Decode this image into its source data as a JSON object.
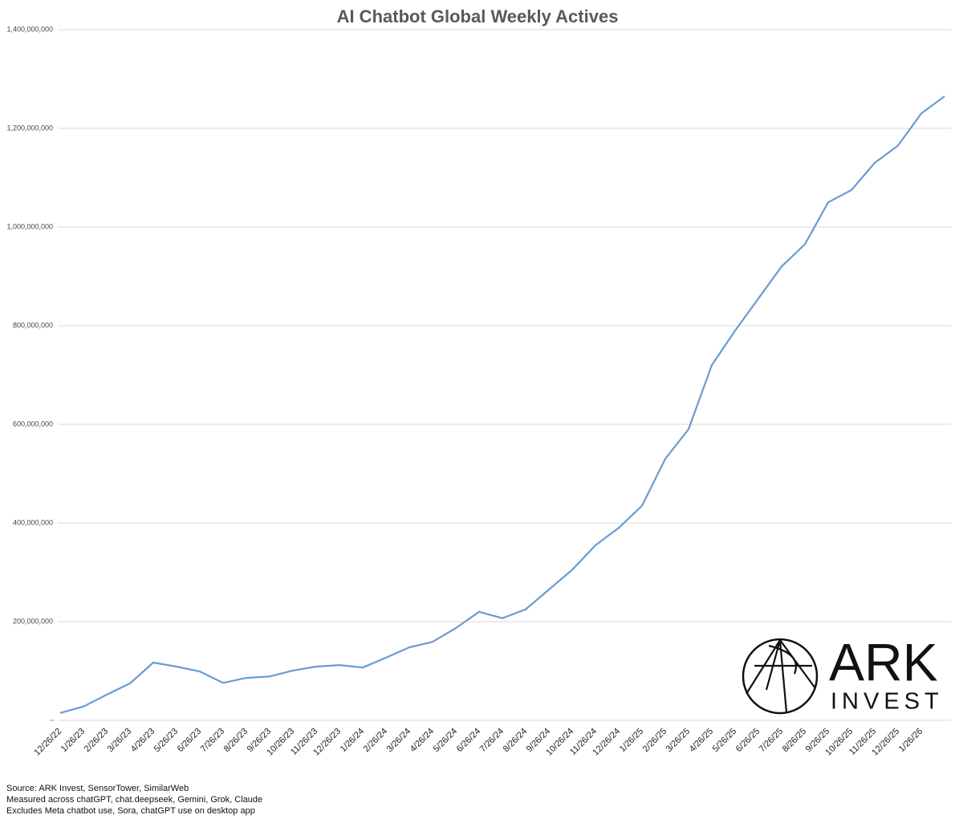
{
  "chart_data": {
    "type": "line",
    "title": "AI Chatbot Global Weekly Actives",
    "categories": [
      "12/26/22",
      "1/26/23",
      "2/26/23",
      "3/26/23",
      "4/26/23",
      "5/26/23",
      "6/26/23",
      "7/26/23",
      "8/26/23",
      "9/26/23",
      "10/26/23",
      "11/26/23",
      "12/26/23",
      "1/26/24",
      "2/26/24",
      "3/26/24",
      "4/26/24",
      "5/26/24",
      "6/26/24",
      "7/26/24",
      "8/26/24",
      "9/26/24",
      "10/26/24",
      "11/26/24",
      "12/26/24",
      "1/26/25",
      "2/26/25",
      "3/26/25",
      "4/26/25",
      "5/26/25",
      "6/26/25",
      "7/26/25",
      "8/26/25",
      "9/26/25",
      "10/26/25",
      "11/26/25",
      "12/26/25",
      "1/26/26",
      null
    ],
    "series": [
      {
        "name": "Weekly Actives",
        "color": "#6a9bd1",
        "values": [
          15000000,
          28000000,
          52000000,
          75000000,
          117000000,
          109000000,
          99000000,
          76000000,
          86000000,
          89000000,
          101000000,
          109000000,
          112000000,
          107000000,
          127000000,
          148000000,
          159000000,
          187000000,
          220000000,
          207000000,
          225000000,
          265000000,
          305000000,
          355000000,
          390000000,
          435000000,
          530000000,
          590000000,
          720000000,
          790000000,
          855000000,
          920000000,
          965000000,
          1050000000,
          1075000000,
          1130000000,
          1165000000,
          1230000000,
          1265000000
        ]
      }
    ],
    "ylim": [
      0,
      1400000000
    ],
    "yticks": [
      {
        "value": 200000000,
        "label": "200,000,000"
      },
      {
        "value": 400000000,
        "label": "400,000,000"
      },
      {
        "value": 600000000,
        "label": "600,000,000"
      },
      {
        "value": 800000000,
        "label": "800,000,000"
      },
      {
        "value": 1000000000,
        "label": "1,000,000,000"
      },
      {
        "value": 1200000000,
        "label": "1,200,000,000"
      },
      {
        "value": 1400000000,
        "label": "1,400,000,000"
      }
    ],
    "grid": true,
    "logo": {
      "line1": "ARK",
      "line2": "INVEST"
    },
    "notes": [
      "Source: ARK Invest, SensorTower, SimilarWeb",
      "Measured across chatGPT, chat.deepseek, Gemini, Grok, Claude",
      "Excludes Meta chatbot use, Sora, chatGPT use on desktop app"
    ]
  }
}
